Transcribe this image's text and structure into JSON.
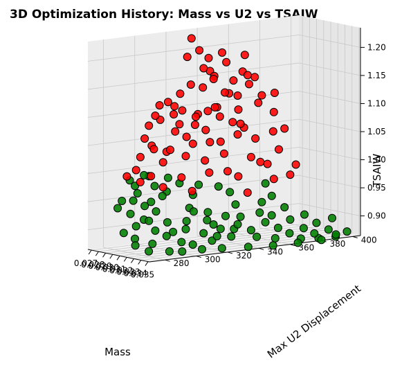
{
  "chart_data": {
    "type": "scatter",
    "title": "3D Optimization History: Mass vs U2 vs TSAIW",
    "xlabel": "Mass",
    "ylabel": "Max U2 Displacement",
    "zlabel": "TSAIW",
    "xticks": [
      "0.027",
      "0.028",
      "0.029",
      "0.030",
      "0.031",
      "0.032",
      "0.033",
      "0.034",
      "0.035"
    ],
    "yticks": [
      "280",
      "300",
      "320",
      "340",
      "360",
      "380",
      "400"
    ],
    "zticks": [
      "0.90",
      "0.95",
      "1.00",
      "1.05",
      "1.10",
      "1.15",
      "1.20"
    ],
    "xlim": [
      0.0265,
      0.0352
    ],
    "ylim": [
      270,
      405
    ],
    "zlim": [
      0.865,
      1.235
    ],
    "grid": true,
    "colors": {
      "red_points": "#ff0000",
      "green_points": "#008000",
      "edge": "#000000",
      "pane": "#f2f2f2",
      "grid": "#c8c8c8"
    },
    "series": [
      {
        "color": "red",
        "points": [
          [
            0.029,
            325,
            1.228
          ],
          [
            0.0295,
            320,
            1.198
          ],
          [
            0.029,
            330,
            1.205
          ],
          [
            0.03,
            340,
            1.2
          ],
          [
            0.0305,
            330,
            1.172
          ],
          [
            0.0285,
            335,
            1.17
          ],
          [
            0.031,
            350,
            1.195
          ],
          [
            0.0295,
            345,
            1.18
          ],
          [
            0.03,
            320,
            1.15
          ],
          [
            0.029,
            310,
            1.12
          ],
          [
            0.0285,
            320,
            1.13
          ],
          [
            0.0295,
            330,
            1.14
          ],
          [
            0.03,
            335,
            1.16
          ],
          [
            0.0305,
            345,
            1.15
          ],
          [
            0.031,
            340,
            1.13
          ],
          [
            0.03,
            350,
            1.12
          ],
          [
            0.0305,
            355,
            1.14
          ],
          [
            0.0315,
            330,
            1.11
          ],
          [
            0.031,
            320,
            1.1
          ],
          [
            0.029,
            340,
            1.1
          ],
          [
            0.0285,
            300,
            1.08
          ],
          [
            0.029,
            305,
            1.09
          ],
          [
            0.0295,
            315,
            1.08
          ],
          [
            0.03,
            310,
            1.07
          ],
          [
            0.0305,
            315,
            1.06
          ],
          [
            0.031,
            325,
            1.07
          ],
          [
            0.0315,
            340,
            1.08
          ],
          [
            0.032,
            345,
            1.07
          ],
          [
            0.032,
            330,
            1.05
          ],
          [
            0.031,
            300,
            1.04
          ],
          [
            0.03,
            295,
            1.05
          ],
          [
            0.0295,
            290,
            1.03
          ],
          [
            0.0305,
            300,
            1.02
          ],
          [
            0.0315,
            310,
            1.03
          ],
          [
            0.032,
            320,
            1.02
          ],
          [
            0.0325,
            330,
            1.03
          ],
          [
            0.0325,
            350,
            1.05
          ],
          [
            0.033,
            345,
            1.02
          ],
          [
            0.033,
            330,
            1.0
          ],
          [
            0.032,
            305,
            0.995
          ],
          [
            0.031,
            290,
            1.0
          ],
          [
            0.03,
            285,
            1.01
          ],
          [
            0.029,
            295,
            1.06
          ],
          [
            0.0288,
            315,
            1.11
          ],
          [
            0.0296,
            325,
            1.09
          ],
          [
            0.0302,
            330,
            1.1
          ],
          [
            0.0308,
            335,
            1.09
          ],
          [
            0.0312,
            345,
            1.1
          ],
          [
            0.0318,
            355,
            1.11
          ],
          [
            0.0322,
            340,
            1.06
          ],
          [
            0.0316,
            325,
            1.05
          ],
          [
            0.0306,
            320,
            1.08
          ],
          [
            0.0298,
            310,
            1.1
          ],
          [
            0.0292,
            300,
            1.04
          ],
          [
            0.0304,
            305,
            1.04
          ],
          [
            0.0314,
            315,
            1.05
          ],
          [
            0.0326,
            320,
            1.0
          ],
          [
            0.0334,
            335,
            0.99
          ],
          [
            0.0332,
            350,
            1.01
          ],
          [
            0.0336,
            360,
            1.03
          ],
          [
            0.0328,
            360,
            1.06
          ],
          [
            0.0318,
            365,
            1.09
          ],
          [
            0.0312,
            360,
            1.12
          ],
          [
            0.0302,
            360,
            1.15
          ],
          [
            0.0296,
            355,
            1.16
          ],
          [
            0.0308,
            370,
            1.12
          ],
          [
            0.0322,
            370,
            1.06
          ],
          [
            0.0338,
            370,
            1.0
          ],
          [
            0.034,
            355,
            0.98
          ],
          [
            0.0336,
            340,
            0.96
          ],
          [
            0.0324,
            310,
            0.97
          ],
          [
            0.0316,
            295,
            0.98
          ],
          [
            0.0306,
            285,
            0.99
          ],
          [
            0.0298,
            280,
            1.0
          ],
          [
            0.0294,
            300,
            1.1
          ],
          [
            0.0304,
            340,
            1.13
          ],
          [
            0.0314,
            350,
            1.16
          ],
          [
            0.0288,
            340,
            1.15
          ],
          [
            0.032,
            360,
            1.0
          ],
          [
            0.033,
            370,
            0.98
          ],
          [
            0.0326,
            340,
            1.08
          ],
          [
            0.031,
            310,
            1.11
          ],
          [
            0.03,
            300,
            1.12
          ],
          [
            0.0292,
            335,
            1.19
          ]
        ]
      },
      {
        "color": "green",
        "points": [
          [
            0.028,
            295,
            0.96
          ],
          [
            0.0285,
            290,
            0.95
          ],
          [
            0.029,
            295,
            0.94
          ],
          [
            0.0282,
            305,
            0.97
          ],
          [
            0.0288,
            310,
            0.96
          ],
          [
            0.0295,
            300,
            0.93
          ],
          [
            0.03,
            290,
            0.92
          ],
          [
            0.0292,
            285,
            0.93
          ],
          [
            0.0285,
            280,
            0.94
          ],
          [
            0.028,
            285,
            0.95
          ],
          [
            0.03,
            305,
            0.91
          ],
          [
            0.0305,
            295,
            0.9
          ],
          [
            0.031,
            300,
            0.89
          ],
          [
            0.0315,
            310,
            0.9
          ],
          [
            0.0305,
            315,
            0.91
          ],
          [
            0.0298,
            320,
            0.93
          ],
          [
            0.0292,
            325,
            0.95
          ],
          [
            0.0302,
            330,
            0.92
          ],
          [
            0.031,
            330,
            0.9
          ],
          [
            0.0318,
            320,
            0.89
          ],
          [
            0.032,
            305,
            0.88
          ],
          [
            0.0312,
            290,
            0.88
          ],
          [
            0.0305,
            282,
            0.89
          ],
          [
            0.0298,
            278,
            0.9
          ],
          [
            0.0325,
            310,
            0.875
          ],
          [
            0.033,
            320,
            0.88
          ],
          [
            0.0335,
            330,
            0.885
          ],
          [
            0.0328,
            335,
            0.895
          ],
          [
            0.0322,
            340,
            0.9
          ],
          [
            0.0315,
            345,
            0.91
          ],
          [
            0.0308,
            345,
            0.93
          ],
          [
            0.03,
            345,
            0.95
          ],
          [
            0.033,
            345,
            0.89
          ],
          [
            0.0338,
            345,
            0.88
          ],
          [
            0.0342,
            355,
            0.875
          ],
          [
            0.034,
            365,
            0.88
          ],
          [
            0.0335,
            360,
            0.89
          ],
          [
            0.0328,
            355,
            0.9
          ],
          [
            0.032,
            355,
            0.915
          ],
          [
            0.0312,
            360,
            0.93
          ],
          [
            0.0345,
            370,
            0.87
          ],
          [
            0.0348,
            380,
            0.868
          ],
          [
            0.0342,
            380,
            0.875
          ],
          [
            0.0338,
            375,
            0.885
          ],
          [
            0.033,
            370,
            0.9
          ],
          [
            0.0322,
            370,
            0.92
          ],
          [
            0.0315,
            365,
            0.94
          ],
          [
            0.0306,
            365,
            0.96
          ],
          [
            0.035,
            390,
            0.868
          ],
          [
            0.0346,
            392,
            0.87
          ],
          [
            0.034,
            390,
            0.878
          ],
          [
            0.0334,
            385,
            0.89
          ],
          [
            0.0328,
            380,
            0.905
          ],
          [
            0.0285,
            300,
            0.99
          ],
          [
            0.029,
            310,
            0.985
          ],
          [
            0.0295,
            315,
            0.975
          ],
          [
            0.03,
            325,
            0.97
          ],
          [
            0.0306,
            335,
            0.965
          ],
          [
            0.028,
            290,
            0.985
          ],
          [
            0.0278,
            300,
            0.99
          ],
          [
            0.03,
            285,
            0.91
          ],
          [
            0.031,
            280,
            0.88
          ],
          [
            0.0318,
            285,
            0.87
          ],
          [
            0.0325,
            295,
            0.868
          ],
          [
            0.0332,
            300,
            0.868
          ],
          [
            0.0338,
            310,
            0.87
          ],
          [
            0.0344,
            320,
            0.87
          ],
          [
            0.0348,
            335,
            0.868
          ],
          [
            0.035,
            350,
            0.866
          ],
          [
            0.0352,
            365,
            0.866
          ],
          [
            0.0352,
            380,
            0.866
          ],
          [
            0.0296,
            295,
            0.915
          ],
          [
            0.0288,
            300,
            0.945
          ],
          [
            0.0304,
            320,
            0.925
          ],
          [
            0.0312,
            325,
            0.91
          ],
          [
            0.032,
            330,
            0.895
          ],
          [
            0.0326,
            325,
            0.885
          ],
          [
            0.0316,
            335,
            0.915
          ],
          [
            0.0308,
            305,
            0.895
          ],
          [
            0.0326,
            360,
            0.91
          ],
          [
            0.0334,
            395,
            0.895
          ],
          [
            0.0344,
            400,
            0.872
          ],
          [
            0.0283,
            292,
            0.975
          ],
          [
            0.0293,
            305,
            0.955
          ]
        ]
      }
    ]
  }
}
